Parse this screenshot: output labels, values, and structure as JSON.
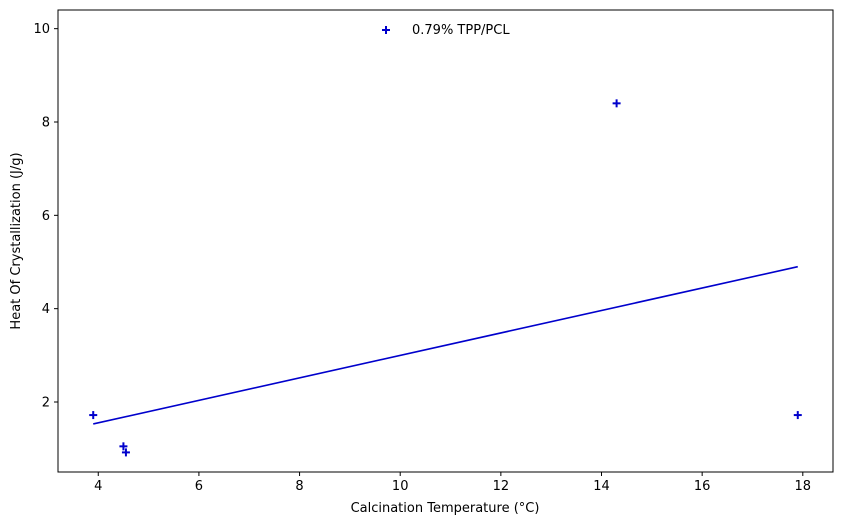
{
  "chart_data": {
    "type": "scatter",
    "xlabel": "Calcination Temperature (°C)",
    "ylabel": "Heat Of Crystallization (J/g)",
    "xlim": [
      3.2,
      18.6
    ],
    "ylim": [
      0.5,
      10.4
    ],
    "xticks": [
      4,
      6,
      8,
      10,
      12,
      14,
      16,
      18
    ],
    "yticks": [
      2,
      4,
      6,
      8,
      10
    ],
    "grid": false,
    "legend_position": "top-center",
    "color": "#0000cc",
    "series": [
      {
        "name": "0.79% TPP/PCL",
        "marker": "plus",
        "x": [
          3.9,
          4.5,
          4.55,
          14.3,
          17.9
        ],
        "y": [
          1.72,
          1.05,
          0.92,
          8.4,
          1.72
        ]
      }
    ],
    "fit_line": {
      "x": [
        3.9,
        17.9
      ],
      "y": [
        1.53,
        4.9
      ]
    }
  }
}
